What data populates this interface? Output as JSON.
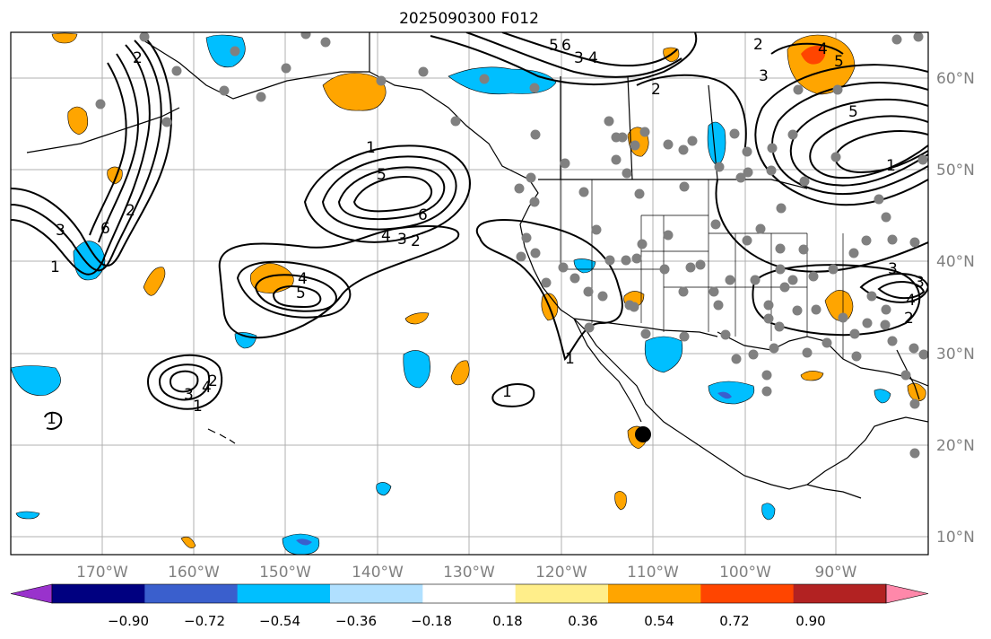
{
  "title": "2025090300 F012",
  "map": {
    "longitude_labels": [
      "170°W",
      "160°W",
      "150°W",
      "140°W",
      "130°W",
      "120°W",
      "110°W",
      "100°W",
      "90°W"
    ],
    "latitude_labels": [
      "60°N",
      "50°N",
      "40°N",
      "30°N",
      "20°N",
      "10°N"
    ],
    "contour_labels": [
      "5",
      "6",
      "4",
      "3",
      "2",
      "1",
      "1",
      "5",
      "6",
      "4",
      "3",
      "2",
      "4",
      "2",
      "3",
      "2",
      "1",
      "1",
      "1",
      "2",
      "3",
      "4",
      "5",
      "6",
      "5",
      "4",
      "3",
      "2",
      "3",
      "1",
      "5",
      "1",
      "2",
      "4",
      "3"
    ],
    "colors": {
      "orange": "#ffa500",
      "red": "#ff4500",
      "deep_red": "#b22222",
      "sky_blue": "#00bfff",
      "light_blue": "#b0e0ff",
      "royal_blue": "#3a5fcd",
      "navy": "#000080",
      "station": "#808080",
      "land_outline": "#000000",
      "grid": "#b0b0b0"
    }
  },
  "colorbar": {
    "tick_labels": [
      "−0.90",
      "−0.72",
      "−0.54",
      "−0.36",
      "−0.18",
      "0.18",
      "0.36",
      "0.54",
      "0.72",
      "0.90"
    ],
    "colors": [
      "#9932cc",
      "#000080",
      "#3a5fcd",
      "#00bfff",
      "#b0e0ff",
      "#ffffff",
      "#ffee8a",
      "#ffa500",
      "#ff4500",
      "#b22222",
      "#ff88aa"
    ]
  }
}
